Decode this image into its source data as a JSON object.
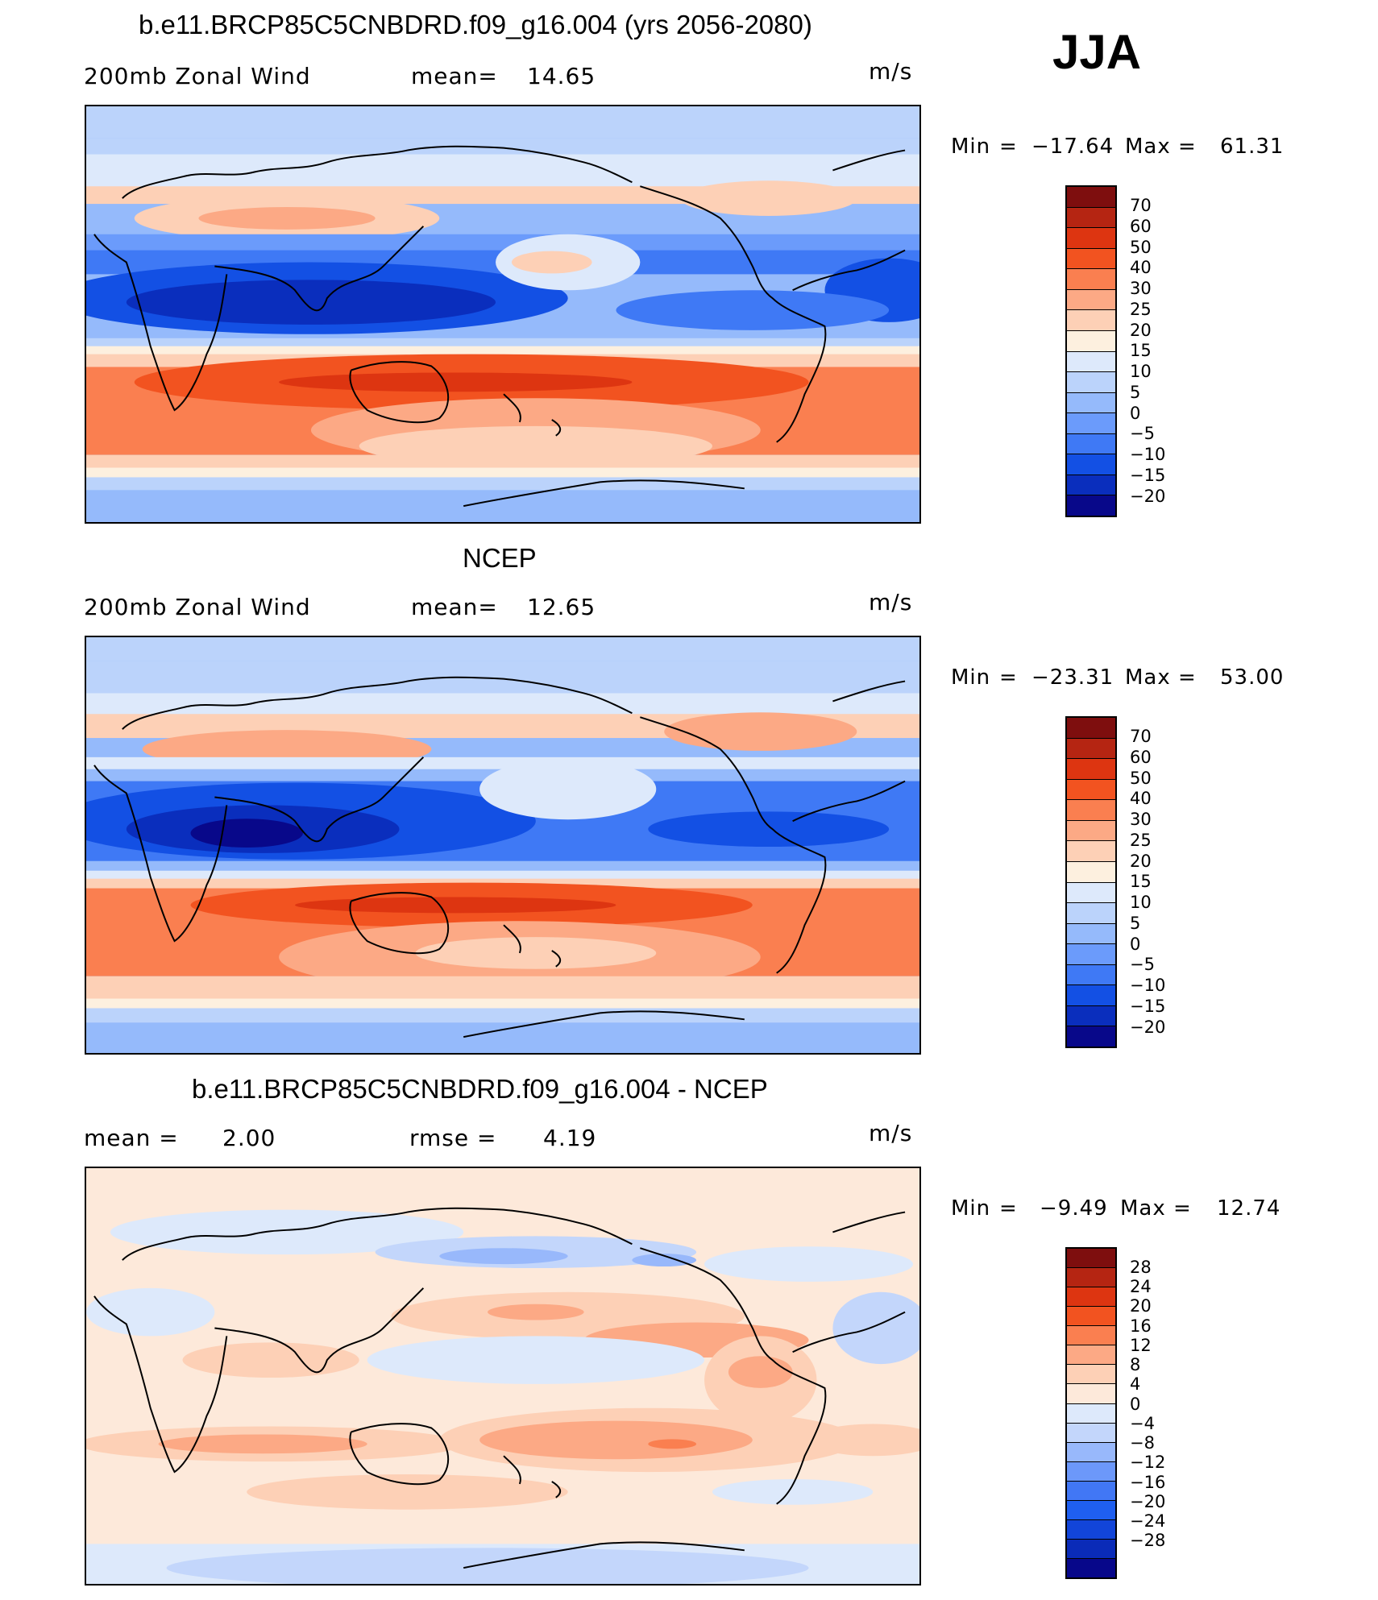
{
  "season": "JJA",
  "palette_main": [
    "#08088a",
    "#0a2ebd",
    "#1350e4",
    "#3f79f5",
    "#6b9bfb",
    "#95bafb",
    "#bbd3fb",
    "#dde9fb",
    "#fdf0df",
    "#fdd0b6",
    "#fca985",
    "#fa7f50",
    "#f25320",
    "#dd3511",
    "#b52512",
    "#7e0e0e"
  ],
  "palette_diff": [
    "#07078a",
    "#0a2bb8",
    "#1245d9",
    "#1f5ff0",
    "#4177f5",
    "#6c98fa",
    "#98b8fb",
    "#c3d6fb",
    "#dde9fb",
    "#fde9da",
    "#fdd0b6",
    "#fca985",
    "#fa7f50",
    "#f25320",
    "#dd3511",
    "#b52512",
    "#7e0e0e"
  ],
  "panels": [
    {
      "title": "b.e11.BRCP85C5CNBDRD.f09_g16.004 (yrs 2056-2080)",
      "left_text": "200mb Zonal Wind",
      "mid_label": "mean=",
      "mid_value": "14.65",
      "units": "m/s",
      "min_label": "Min",
      "min_value": "−17.64",
      "max_label": "Max",
      "max_value": "61.31",
      "colorbar_labels": [
        "70",
        "60",
        "50",
        "40",
        "30",
        "25",
        "20",
        "15",
        "10",
        "5",
        "0",
        "−5",
        "−10",
        "−15",
        "−20"
      ]
    },
    {
      "title": "NCEP",
      "left_text": "200mb Zonal Wind",
      "mid_label": "mean=",
      "mid_value": "12.65",
      "units": "m/s",
      "min_label": "Min",
      "min_value": "−23.31",
      "max_label": "Max",
      "max_value": "53.00",
      "colorbar_labels": [
        "70",
        "60",
        "50",
        "40",
        "30",
        "25",
        "20",
        "15",
        "10",
        "5",
        "0",
        "−5",
        "−10",
        "−15",
        "−20"
      ]
    },
    {
      "title": "b.e11.BRCP85C5CNBDRD.f09_g16.004 - NCEP",
      "left_label": "mean =",
      "left_value": "2.00",
      "mid_label": "rmse =",
      "mid_value": "4.19",
      "units": "m/s",
      "min_label": "Min",
      "min_value": "−9.49",
      "max_label": "Max",
      "max_value": "12.74",
      "colorbar_labels": [
        "28",
        "24",
        "20",
        "16",
        "12",
        "8",
        "4",
        "0",
        "−4",
        "−8",
        "−12",
        "−16",
        "−20",
        "−24",
        "−28"
      ]
    }
  ]
}
